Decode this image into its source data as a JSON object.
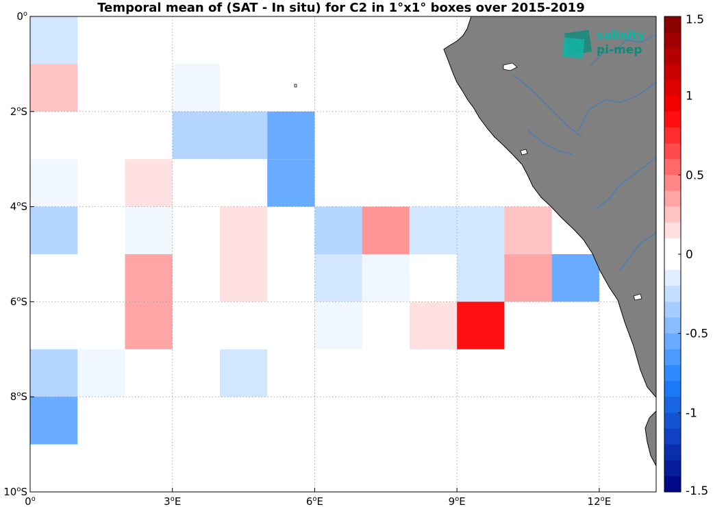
{
  "title": "Temporal mean of (SAT - In situ) for C2 in 1°x1° boxes over 2015-2019",
  "logo": {
    "line1": "salinity",
    "line2": "pi-mep"
  },
  "chart_data": {
    "type": "heatmap",
    "grid": true,
    "xlim": [
      0,
      13.2
    ],
    "ylim": [
      -10,
      0
    ],
    "x_ticks": [
      {
        "value": 0,
        "label": "0",
        "hemi": ""
      },
      {
        "value": 3,
        "label": "3",
        "hemi": "E"
      },
      {
        "value": 6,
        "label": "6",
        "hemi": "E"
      },
      {
        "value": 9,
        "label": "9",
        "hemi": "E"
      },
      {
        "value": 12,
        "label": "12",
        "hemi": "E"
      }
    ],
    "y_ticks": [
      {
        "value": 0,
        "label": "0",
        "hemi": ""
      },
      {
        "value": -2,
        "label": "2",
        "hemi": "S"
      },
      {
        "value": -4,
        "label": "4",
        "hemi": "S"
      },
      {
        "value": -6,
        "label": "6",
        "hemi": "S"
      },
      {
        "value": -8,
        "label": "8",
        "hemi": "S"
      },
      {
        "value": -10,
        "label": "10",
        "hemi": "S"
      }
    ],
    "colorbar": {
      "range": [
        -1.5,
        1.5
      ],
      "step": 0.1,
      "ticks": [
        {
          "value": 1.5,
          "label": "1.5"
        },
        {
          "value": 1,
          "label": "1"
        },
        {
          "value": 0.5,
          "label": "0.5"
        },
        {
          "value": 0,
          "label": "0"
        },
        {
          "value": -0.5,
          "label": "-0.5"
        },
        {
          "value": -1,
          "label": "-1"
        },
        {
          "value": -1.5,
          "label": "-1.5"
        }
      ],
      "colors": [
        "#ff0000",
        "#e60000",
        "#cc0000",
        "#b20000",
        "#990000",
        "#800000",
        "#800000",
        "#800000",
        "#800000",
        "#800000"
      ]
    },
    "cells": [
      {
        "lon": 0,
        "lat": 0,
        "value": -0.2
      },
      {
        "lon": 0,
        "lat": -1,
        "value": 0.25
      },
      {
        "lon": 0,
        "lat": -3,
        "value": -0.1
      },
      {
        "lon": 0,
        "lat": -4,
        "value": -0.3
      },
      {
        "lon": 0,
        "lat": -7,
        "value": -0.3
      },
      {
        "lon": 0,
        "lat": -8,
        "value": -0.55
      },
      {
        "lon": 1,
        "lat": -7,
        "value": -0.1
      },
      {
        "lon": 2,
        "lat": -3,
        "value": 0.15
      },
      {
        "lon": 2,
        "lat": -4,
        "value": -0.1
      },
      {
        "lon": 2,
        "lat": -5,
        "value": 0.35
      },
      {
        "lon": 2,
        "lat": -6,
        "value": 0.35
      },
      {
        "lon": 3,
        "lat": -1,
        "value": -0.1
      },
      {
        "lon": 3,
        "lat": -2,
        "value": -0.3
      },
      {
        "lon": 4,
        "lat": -2,
        "value": -0.3
      },
      {
        "lon": 4,
        "lat": -4,
        "value": 0.15
      },
      {
        "lon": 4,
        "lat": -5,
        "value": 0.15
      },
      {
        "lon": 4,
        "lat": -7,
        "value": -0.2
      },
      {
        "lon": 5,
        "lat": -2,
        "value": -0.55
      },
      {
        "lon": 5,
        "lat": -3,
        "value": -0.55
      },
      {
        "lon": 6,
        "lat": -4,
        "value": -0.3
      },
      {
        "lon": 6,
        "lat": -5,
        "value": -0.2
      },
      {
        "lon": 6,
        "lat": -6,
        "value": -0.1
      },
      {
        "lon": 7,
        "lat": -4,
        "value": 0.4
      },
      {
        "lon": 7,
        "lat": -5,
        "value": -0.1
      },
      {
        "lon": 8,
        "lat": -4,
        "value": -0.2
      },
      {
        "lon": 8,
        "lat": -6,
        "value": 0.15
      },
      {
        "lon": 9,
        "lat": -4,
        "value": -0.2
      },
      {
        "lon": 9,
        "lat": -5,
        "value": -0.2
      },
      {
        "lon": 9,
        "lat": -6,
        "value": 0.85
      },
      {
        "lon": 10,
        "lat": -4,
        "value": 0.25
      },
      {
        "lon": 10,
        "lat": -5,
        "value": 0.35
      },
      {
        "lon": 11,
        "lat": -5,
        "value": -0.55
      }
    ]
  }
}
